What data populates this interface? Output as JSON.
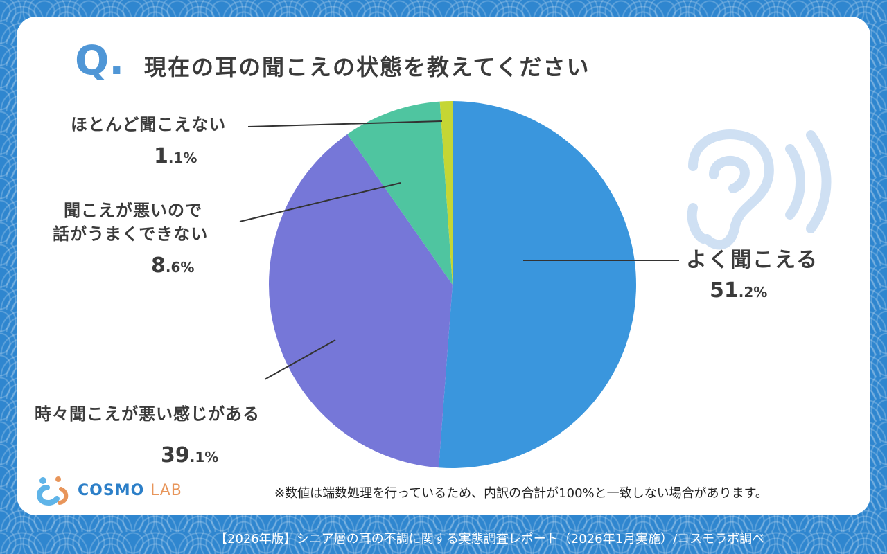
{
  "question": {
    "mark": "Q.",
    "title": "現在の耳の聞こえの状態を教えてください"
  },
  "chart_data": {
    "type": "pie",
    "slices": [
      {
        "label": "よく聞こえる",
        "value": 51.2,
        "int": "51",
        "dec": ".2%",
        "color": "#3a96dd"
      },
      {
        "label": "時々聞こえが悪い感じがある",
        "value": 39.1,
        "int": "39",
        "dec": ".1%",
        "color": "#7677d8"
      },
      {
        "label_lines": [
          "聞こえが悪いので",
          "話がうまくできない"
        ],
        "value": 8.6,
        "int": "8",
        "dec": ".6%",
        "color": "#4fc5a0"
      },
      {
        "label": "ほとんど聞こえない",
        "value": 1.1,
        "int": "1",
        "dec": ".1%",
        "color": "#c5d634"
      }
    ]
  },
  "note": "※数値は端数処理を行っているため、内訳の合計が100%と一致しない場合があります。",
  "logo": {
    "main": "COSMO",
    "sub": "LAB"
  },
  "footer": "【2026年版】シニア層の耳の不調に関する実態調査レポート（2026年1月実施）/コスモラボ調べ",
  "icon": "ear-icon"
}
